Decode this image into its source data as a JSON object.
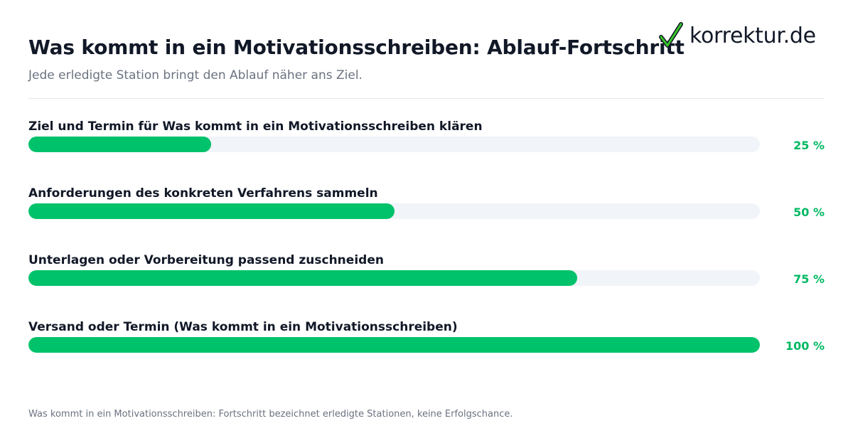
{
  "header": {
    "title": "Was kommt in ein Motivationsschreiben: Ablauf-Fortschritt",
    "subtitle": "Jede erledigte Station bringt den Ablauf näher ans Ziel."
  },
  "logo": {
    "text": "korrektur.de",
    "icon": "checkmark-icon",
    "check_color": "#39c42a"
  },
  "chart_data": {
    "type": "bar",
    "orientation": "horizontal",
    "categories": [
      "Ziel und Termin für Was kommt in ein Motivationsschreiben klären",
      "Anforderungen des konkreten Verfahrens sammeln",
      "Unterlagen oder Vorbereitung passend zuschneiden",
      "Versand oder Termin (Was kommt in ein Motivationsschreiben)"
    ],
    "values": [
      25,
      50,
      75,
      100
    ],
    "value_labels": [
      "25 %",
      "50 %",
      "75 %",
      "100 %"
    ],
    "xlim": [
      0,
      100
    ],
    "grid": false,
    "bar_color": "#00c26a",
    "track_color": "#f1f4f8"
  },
  "footnote": "Was kommt in ein Motivationsschreiben: Fortschritt bezeichnet erledigte Stationen, keine Erfolgschance."
}
